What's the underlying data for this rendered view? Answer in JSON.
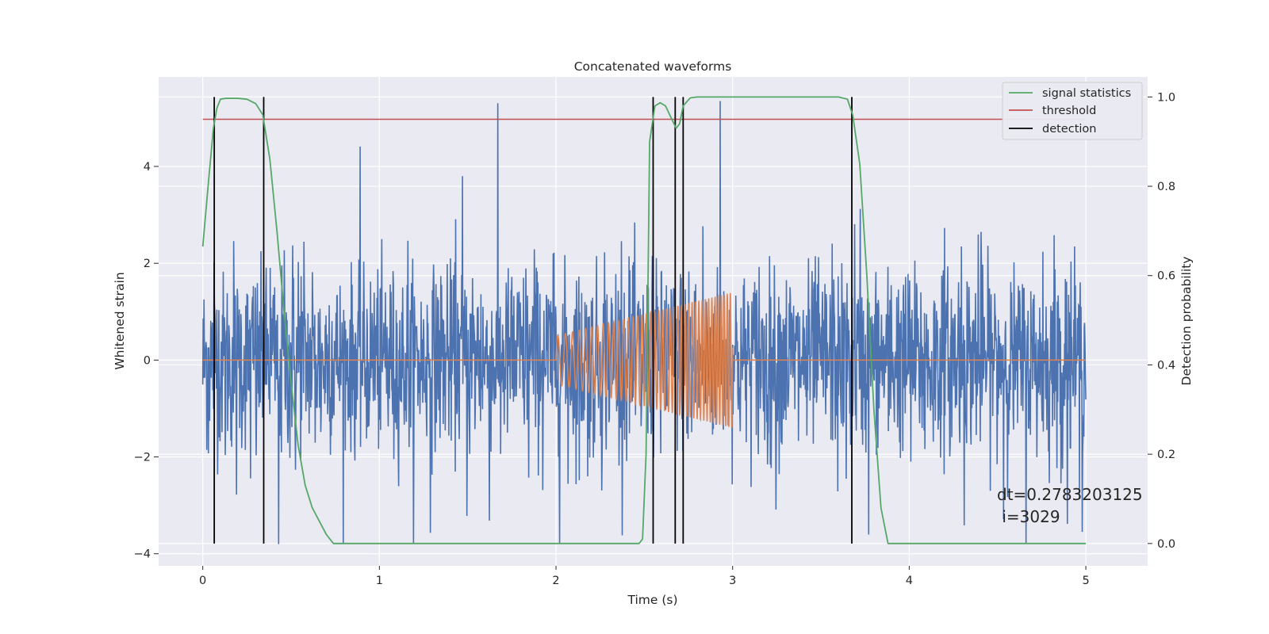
{
  "chart_data": {
    "type": "line",
    "title": "Concatenated waveforms",
    "xlabel": "Time (s)",
    "ylabel": "Whitened strain",
    "ylabel_right": "Detection probability",
    "xlim": [
      -0.25,
      5.35
    ],
    "ylim": [
      -4.25,
      5.85
    ],
    "ylim_right": [
      -0.05,
      1.045
    ],
    "x_ticks": [
      0,
      1,
      2,
      3,
      4,
      5
    ],
    "y_ticks": [
      -4,
      -2,
      0,
      2,
      4
    ],
    "y_ticks_right": [
      0.0,
      0.2,
      0.4,
      0.6,
      0.8,
      1.0
    ],
    "grid": true,
    "legend_position": "top-right",
    "legend": [
      "signal statistics",
      "threshold",
      "detection"
    ],
    "colors": {
      "strain": "#4c72b0",
      "template": "#dd8452",
      "signal_statistics": "#55a868",
      "threshold": "#c44e52",
      "detection": "#000000",
      "background": "#eaeaf2"
    },
    "series": [
      {
        "name": "signal statistics",
        "axis": "right",
        "x": [
          0,
          0.03,
          0.06,
          0.08,
          0.1,
          0.13,
          0.2,
          0.25,
          0.3,
          0.34,
          0.38,
          0.42,
          0.46,
          0.5,
          0.54,
          0.58,
          0.62,
          0.66,
          0.7,
          0.74,
          2.47,
          2.49,
          2.51,
          2.53,
          2.56,
          2.59,
          2.62,
          2.65,
          2.68,
          2.7,
          2.72,
          2.76,
          2.8,
          3.0,
          3.6,
          3.65,
          3.68,
          3.72,
          3.76,
          3.8,
          3.84,
          3.88,
          5.0
        ],
        "y": [
          0.665,
          0.8,
          0.93,
          0.975,
          0.995,
          0.997,
          0.997,
          0.995,
          0.985,
          0.96,
          0.86,
          0.7,
          0.52,
          0.36,
          0.22,
          0.13,
          0.08,
          0.05,
          0.02,
          0.0,
          0.0,
          0.01,
          0.2,
          0.9,
          0.98,
          0.987,
          0.98,
          0.955,
          0.93,
          0.94,
          0.98,
          0.998,
          1.0,
          1.0,
          1.0,
          0.995,
          0.96,
          0.85,
          0.6,
          0.3,
          0.08,
          0.0,
          0.0
        ]
      },
      {
        "name": "threshold",
        "axis": "right",
        "x": [
          0,
          5
        ],
        "y": [
          0.95,
          0.95
        ]
      },
      {
        "name": "detection",
        "type": "vlines",
        "x": [
          0.065,
          0.345,
          2.55,
          2.675,
          2.72,
          3.675
        ],
        "ymin": 0.0,
        "ymax": 1.0
      },
      {
        "name": "",
        "axis": "left",
        "generated": "noise",
        "x_range": [
          0,
          5
        ],
        "typical_amplitude": 1.2,
        "peaks_x": [
          1.47,
          2.93,
          0.43
        ],
        "peaks_y": [
          3.8,
          5.35,
          -3.8
        ]
      },
      {
        "name": "",
        "axis": "left",
        "generated": "chirp",
        "x_range": [
          2.0,
          3.0
        ],
        "amplitude_range": [
          0.5,
          1.4
        ],
        "baseline": 0
      }
    ],
    "annotations": {
      "dt": "dt=0.2783203125",
      "i": " i=3029"
    }
  }
}
